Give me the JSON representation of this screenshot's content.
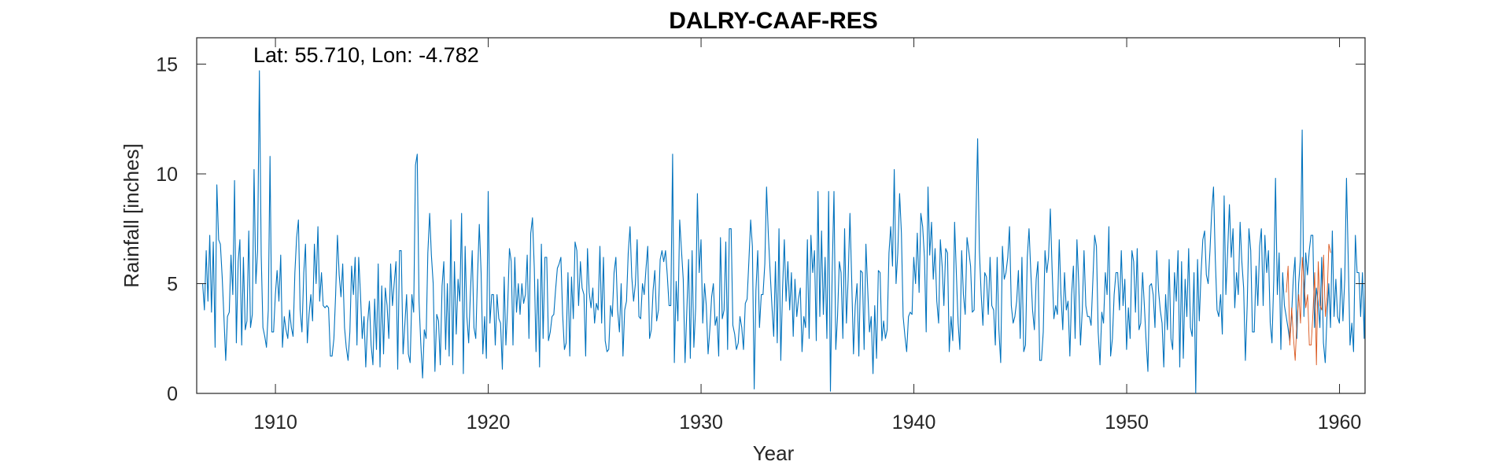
{
  "chart_data": {
    "type": "line",
    "title": "DALRY-CAAF-RES",
    "xlabel": "Year",
    "ylabel": "Rainfall [inches]",
    "annotation": "Lat: 55.710, Lon: -4.782",
    "xlim": [
      1906.3,
      1961.2
    ],
    "ylim": [
      0,
      16.2
    ],
    "xticks": [
      1910,
      1920,
      1930,
      1940,
      1950,
      1960
    ],
    "yticks": [
      0,
      5,
      10,
      15
    ],
    "grid": false,
    "legend": "none",
    "series": [
      {
        "color": "#0072BD",
        "x_start": 1906.58,
        "x_step": 0.08333,
        "values": [
          5.0,
          3.8,
          6.5,
          4.2,
          7.2,
          3.7,
          6.9,
          2.1,
          9.5,
          7.0,
          6.8,
          5.3,
          3.5,
          1.5,
          3.5,
          3.7,
          6.3,
          4.5,
          9.7,
          2.3,
          6.0,
          7.0,
          2.2,
          6.2,
          2.9,
          3.3,
          7.4,
          3.0,
          3.6,
          10.2,
          5.0,
          6.5,
          14.7,
          6.3,
          3.0,
          2.6,
          2.1,
          3.8,
          10.8,
          2.8,
          2.8,
          4.5,
          5.6,
          4.2,
          6.3,
          2.1,
          3.5,
          2.9,
          2.5,
          3.8,
          3.0,
          2.6,
          5.5,
          7.1,
          7.9,
          3.8,
          2.8,
          5.5,
          6.8,
          2.3,
          3.6,
          4.5,
          3.3,
          6.8,
          5.0,
          7.6,
          4.2,
          5.5,
          4.0,
          3.9,
          4.0,
          3.9,
          1.7,
          1.7,
          2.5,
          4.5,
          7.2,
          5.4,
          4.4,
          5.9,
          3.0,
          2.1,
          1.5,
          2.8,
          5.8,
          4.5,
          6.2,
          2.2,
          6.2,
          4.5,
          2.5,
          3.5,
          1.2,
          3.2,
          4.2,
          2.2,
          1.3,
          4.3,
          2.0,
          5.9,
          1.2,
          4.9,
          1.8,
          4.8,
          4.0,
          2.5,
          5.9,
          4.0,
          5.0,
          6.0,
          1.1,
          6.5,
          6.5,
          1.8,
          3.1,
          4.5,
          1.8,
          1.4,
          4.5,
          3.7,
          10.4,
          10.9,
          4.2,
          2.3,
          0.7,
          2.9,
          2.5,
          6.4,
          8.2,
          6.3,
          5.0,
          1.0,
          3.6,
          3.3,
          1.3,
          4.9,
          6.0,
          2.0,
          5.0,
          1.7,
          7.9,
          1.3,
          6.0,
          2.7,
          5.2,
          4.2,
          8.2,
          0.9,
          6.7,
          3.5,
          2.3,
          4.6,
          6.5,
          3.0,
          2.5,
          5.3,
          7.7,
          5.5,
          1.8,
          3.5,
          1.6,
          9.2,
          3.2,
          4.5,
          4.5,
          2.2,
          4.5,
          3.4,
          3.2,
          1.1,
          5.3,
          2.2,
          4.0,
          6.6,
          6.0,
          2.2,
          6.2,
          3.7,
          5.0,
          3.6,
          5.0,
          4.1,
          4.5,
          6.3,
          2.5,
          7.3,
          8.0,
          5.7,
          1.9,
          5.2,
          1.2,
          6.8,
          2.5,
          6.2,
          6.2,
          2.4,
          2.8,
          3.5,
          3.6,
          4.7,
          5.7,
          5.9,
          6.2,
          3.6,
          2.0,
          2.3,
          5.5,
          1.7,
          5.3,
          3.4,
          6.9,
          6.5,
          4.0,
          6.0,
          4.8,
          4.5,
          1.7,
          6.6,
          4.6,
          3.9,
          4.8,
          3.2,
          4.1,
          3.8,
          6.7,
          3.2,
          6.2,
          2.4,
          1.9,
          2.0,
          4.0,
          3.5,
          5.5,
          6.2,
          3.8,
          2.8,
          5.0,
          1.7,
          3.8,
          4.2,
          6.4,
          7.6,
          5.3,
          4.2,
          5.0,
          7.0,
          3.5,
          3.4,
          5.0,
          4.5,
          5.7,
          6.7,
          2.5,
          2.9,
          4.7,
          5.6,
          3.3,
          3.8,
          6.1,
          6.5,
          6.0,
          6.5,
          5.4,
          4.0,
          4.0,
          10.9,
          1.4,
          5.1,
          3.3,
          7.9,
          6.5,
          5.2,
          1.4,
          3.7,
          6.1,
          1.6,
          6.5,
          2.1,
          3.9,
          9.1,
          5.5,
          7.0,
          3.2,
          5.0,
          4.0,
          1.8,
          2.9,
          4.4,
          5.0,
          3.1,
          3.5,
          1.7,
          7.1,
          3.4,
          3.8,
          6.9,
          2.0,
          7.5,
          7.5,
          3.1,
          2.7,
          2.0,
          2.3,
          3.5,
          3.0,
          2.0,
          4.1,
          4.3,
          6.0,
          7.9,
          6.7,
          0.2,
          4.7,
          6.5,
          3.0,
          4.5,
          4.5,
          5.9,
          9.4,
          7.2,
          5.5,
          4.0,
          2.6,
          6.0,
          2.3,
          7.5,
          1.5,
          4.7,
          7.0,
          4.2,
          6.0,
          3.8,
          5.5,
          2.6,
          5.2,
          3.5,
          4.3,
          4.8,
          1.9,
          3.5,
          3.0,
          7.0,
          2.5,
          7.2,
          5.5,
          6.5,
          2.4,
          9.2,
          3.5,
          7.4,
          3.6,
          6.2,
          2.5,
          9.2,
          0.1,
          5.5,
          9.2,
          2.0,
          3.5,
          6.0,
          5.5,
          2.5,
          7.5,
          3.2,
          5.2,
          8.2,
          5.2,
          1.8,
          4.0,
          5.0,
          1.7,
          5.6,
          5.5,
          2.0,
          6.8,
          4.8,
          2.8,
          3.5,
          0.9,
          4.0,
          1.6,
          5.6,
          5.5,
          2.4,
          3.3,
          2.5,
          2.9,
          6.4,
          7.6,
          5.8,
          10.2,
          5.0,
          6.4,
          9.1,
          7.3,
          3.5,
          2.6,
          1.9,
          3.5,
          3.7,
          3.6,
          6.2,
          5.0,
          7.3,
          4.6,
          8.2,
          7.6,
          6.2,
          2.8,
          9.4,
          6.3,
          7.8,
          5.2,
          6.6,
          4.2,
          3.2,
          7.0,
          5.8,
          4.0,
          6.6,
          6.4,
          1.9,
          3.5,
          2.4,
          7.8,
          5.5,
          3.2,
          2.0,
          6.5,
          4.5,
          3.6,
          7.1,
          6.5,
          5.8,
          3.7,
          3.8,
          7.8,
          11.6,
          6.5,
          4.5,
          3.1,
          5.5,
          5.3,
          3.6,
          6.2,
          4.0,
          3.8,
          2.2,
          6.2,
          2.9,
          1.4,
          6.7,
          5.2,
          5.5,
          6.2,
          7.6,
          4.0,
          3.2,
          3.5,
          4.2,
          5.6,
          2.5,
          6.2,
          1.9,
          2.2,
          6.2,
          7.5,
          5.5,
          3.8,
          2.9,
          5.2,
          6.0,
          1.5,
          1.5,
          2.8,
          6.5,
          5.5,
          6.2,
          8.4,
          5.7,
          3.4,
          4.0,
          3.6,
          7.0,
          4.5,
          2.9,
          5.5,
          3.8,
          4.2,
          1.7,
          4.5,
          5.8,
          2.5,
          7.0,
          5.0,
          2.2,
          3.8,
          6.5,
          4.0,
          3.5,
          3.5,
          3.1,
          5.2,
          7.2,
          6.7,
          2.8,
          1.3,
          3.7,
          3.2,
          5.5,
          4.5,
          7.6,
          1.7,
          2.5,
          4.5,
          5.5,
          5.5,
          3.8,
          6.5,
          4.0,
          5.2,
          2.0,
          3.9,
          2.5,
          6.5,
          6.0,
          3.7,
          6.6,
          2.9,
          3.2,
          5.5,
          4.0,
          2.4,
          1.0,
          4.9,
          5.0,
          4.5,
          3.0,
          6.5,
          4.7,
          3.8,
          3.2,
          1.2,
          4.5,
          2.9,
          6.1,
          2.5,
          2.0,
          5.5,
          4.2,
          6.5,
          1.2,
          6.0,
          1.6,
          5.2,
          3.5,
          6.6,
          3.0,
          2.6,
          5.5,
          0.0,
          6.1,
          3.3,
          5.5,
          7.0,
          7.4,
          5.4,
          5.0,
          6.5,
          8.3,
          9.4,
          6.2,
          3.8,
          3.5,
          4.5,
          2.7,
          9.0,
          4.5,
          6.5,
          8.6,
          6.2,
          7.5,
          3.9,
          5.5,
          4.5,
          7.8,
          6.0,
          4.8,
          1.5,
          4.0,
          7.5,
          6.5,
          2.8,
          2.8,
          5.8,
          4.0,
          6.7,
          7.5,
          4.0,
          7.2,
          5.5,
          6.5,
          3.2,
          2.3,
          5.2,
          9.8,
          4.5,
          6.4,
          2.0,
          5.5,
          4.0,
          3.5,
          3.0,
          2.4,
          3.5,
          5.2,
          6.2,
          2.5,
          5.0,
          6.1,
          12.0,
          3.5,
          6.4,
          5.4,
          6.5,
          7.2,
          7.2,
          3.0,
          4.8,
          4.2,
          3.0,
          6.2,
          2.3,
          1.4,
          3.5,
          5.0,
          3.0,
          7.4,
          3.5,
          5.2,
          3.5,
          3.2,
          5.7,
          3.3,
          5.2,
          9.8,
          6.0,
          2.2,
          3.2,
          1.9,
          7.2,
          5.5,
          5.5,
          3.5,
          5.5,
          2.5,
          7.0,
          7.5,
          3.6,
          6.8,
          2.0,
          5.2,
          9.1,
          3.8,
          5.0,
          6.2,
          2.5,
          4.2,
          4.5,
          6.5,
          3.5,
          8.2,
          6.5,
          5.8,
          9.0,
          3.1,
          1.4,
          7.1,
          5.0,
          4.6,
          2.8,
          1.4,
          3.5,
          5.0,
          6.0,
          1.8,
          6.0,
          4.6,
          7.2,
          2.9,
          3.7,
          7.5,
          4.9,
          5.5,
          6.5,
          2.2,
          4.6,
          6.0,
          2.5,
          6.1,
          6.2,
          5.5,
          1.6,
          4.5,
          3.0,
          4.6,
          3.6,
          5.5,
          6.5,
          2.9,
          6.3,
          1.4,
          5.5,
          4.2,
          4.0,
          7.0,
          2.4,
          4.0,
          5.5,
          3.6,
          3.0,
          2.6,
          5.8,
          3.5,
          6.9,
          2.2,
          2.4,
          7.5,
          2.5,
          5.0,
          4.2,
          3.5,
          1.6,
          6.2,
          2.9,
          5.8,
          2.2,
          8.5,
          6.0,
          4.5,
          3.0,
          6.5,
          2.6,
          2.7,
          5.7,
          4.0,
          1.5,
          2.5,
          6.0,
          4.5,
          5.5,
          5.0,
          2.2,
          5.5,
          1.6,
          5.5,
          3.4,
          2.7,
          5.7,
          3.6,
          1.2,
          7.5,
          2.2,
          4.5,
          5.0,
          6.1,
          3.2,
          5.8,
          3.0,
          5.8,
          7.6,
          2.9,
          3.3,
          6.5,
          4.9,
          3.8,
          7.3,
          6.6
        ],
        "name": ""
      },
      {
        "color": "#D95319",
        "x_start": 1957.5,
        "x_step": 0.08333,
        "values": [
          4.6,
          5.8,
          2.2,
          3.9,
          2.6,
          1.5,
          3.3,
          4.5,
          3.2,
          6.2,
          5.0,
          3.9,
          4.5,
          2.2,
          2.2,
          3.6,
          5.5,
          1.3,
          6.0,
          4.0,
          3.8,
          6.3,
          3.5,
          4.4,
          6.8,
          6.4
        ],
        "name": ""
      }
    ]
  }
}
